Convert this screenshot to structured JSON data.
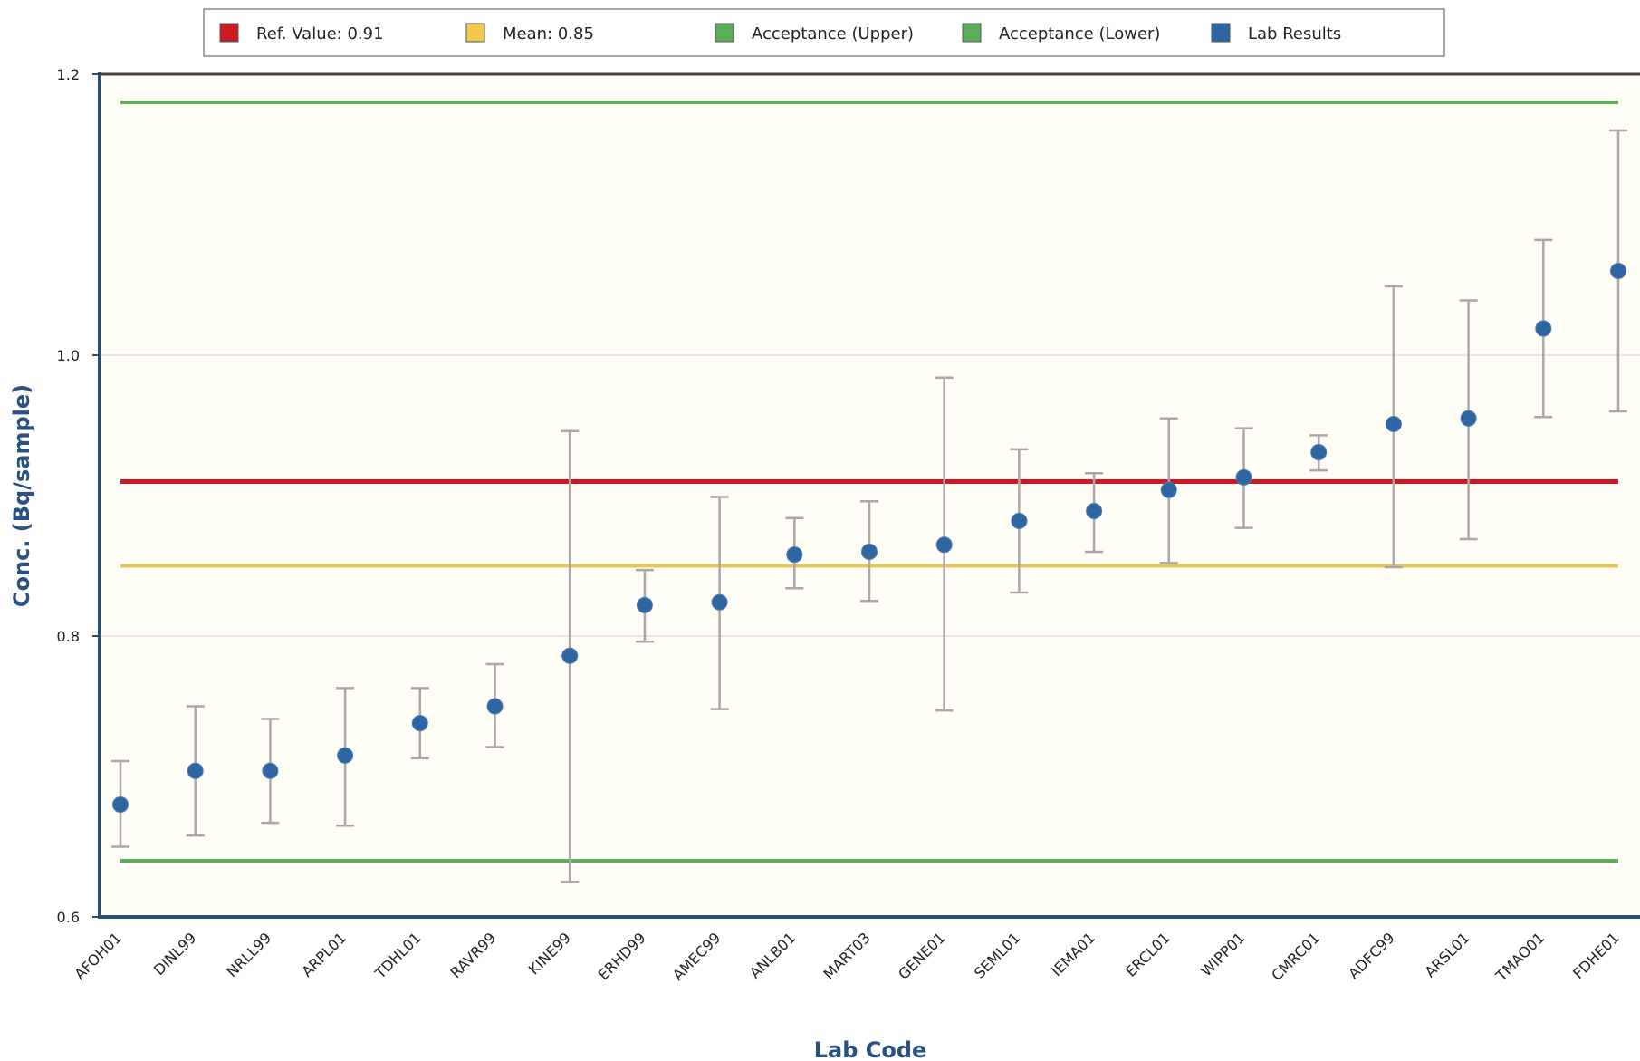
{
  "chart_data": {
    "type": "scatter",
    "xlabel": "Lab Code",
    "ylabel": "Conc. (Bq/sample)",
    "ylim": [
      0.6,
      1.2
    ],
    "yticks": [
      0.6,
      0.8,
      1.0,
      1.2
    ],
    "ytick_labels": [
      "0.6",
      "0.8",
      "1.0",
      "1.2"
    ],
    "grid": true,
    "legend_position": "top",
    "categories": [
      "AFOH01",
      "DINL99",
      "NRLL99",
      "ARPL01",
      "TDHL01",
      "RAVR99",
      "KINE99",
      "ERHD99",
      "AMEC99",
      "ANLB01",
      "MART03",
      "GENE01",
      "SEML01",
      "IEMA01",
      "ERCL01",
      "WIPP01",
      "CMRC01",
      "ADFC99",
      "ARSL01",
      "TMAO01",
      "FDHE01"
    ],
    "series": [
      {
        "name": "Lab Results",
        "color": "#2f65a0",
        "values": [
          0.68,
          0.704,
          0.704,
          0.715,
          0.738,
          0.75,
          0.786,
          0.822,
          0.824,
          0.858,
          0.86,
          0.865,
          0.882,
          0.889,
          0.904,
          0.913,
          0.931,
          0.951,
          0.955,
          1.019,
          1.06
        ],
        "err_low": [
          0.65,
          0.658,
          0.667,
          0.665,
          0.713,
          0.721,
          0.625,
          0.796,
          0.748,
          0.834,
          0.825,
          0.747,
          0.831,
          0.86,
          0.852,
          0.877,
          0.918,
          0.849,
          0.869,
          0.956,
          0.96
        ],
        "err_high": [
          0.711,
          0.75,
          0.741,
          0.763,
          0.763,
          0.78,
          0.946,
          0.847,
          0.899,
          0.884,
          0.896,
          0.984,
          0.933,
          0.916,
          0.955,
          0.948,
          0.943,
          1.049,
          1.039,
          1.082,
          1.16
        ]
      }
    ],
    "reference_lines": [
      {
        "name": "Ref. Value: 0.91",
        "value": 0.91,
        "color": "#cc1a22"
      },
      {
        "name": "Mean: 0.85",
        "value": 0.85,
        "color": "#e9c65c"
      },
      {
        "name": "Acceptance (Upper)",
        "value": 1.18,
        "color": "#5aae5a"
      },
      {
        "name": "Acceptance (Lower)",
        "value": 0.64,
        "color": "#5aae5a"
      }
    ],
    "legend": [
      {
        "label": "Ref. Value: 0.91",
        "color": "#cc1a22"
      },
      {
        "label": "Mean: 0.85",
        "color": "#f2c94c"
      },
      {
        "label": "Acceptance (Upper)",
        "color": "#5aae5a"
      },
      {
        "label": "Acceptance (Lower)",
        "color": "#5aae5a"
      },
      {
        "label": "Lab Results",
        "color": "#2f65a0"
      }
    ],
    "colors": {
      "plot_background": "#fffdf5",
      "error_bar": "#a8a8a8",
      "grid": "#d9d9d9",
      "axis": "#2c4f6c"
    }
  }
}
